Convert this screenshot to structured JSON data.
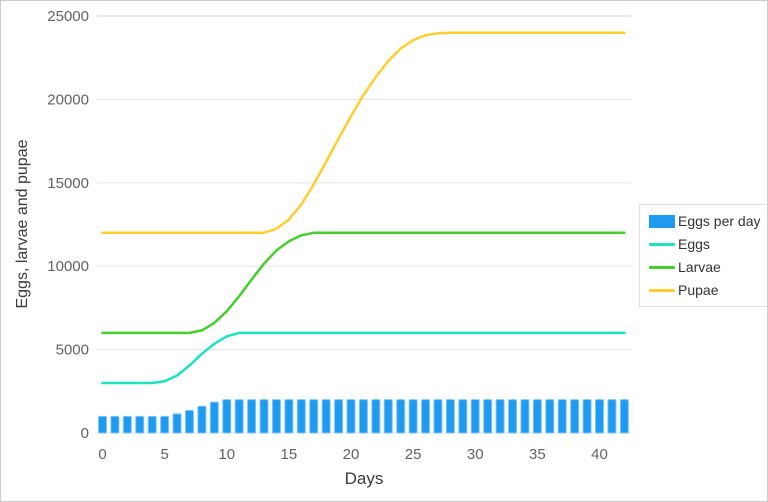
{
  "chart_data": {
    "type": "bar",
    "title": "",
    "xlabel": "Days",
    "ylabel": "Eggs, larvae and pupae",
    "ylim": [
      0,
      25000
    ],
    "yticks": [
      0,
      5000,
      10000,
      15000,
      20000,
      25000
    ],
    "xticks": [
      0,
      5,
      10,
      15,
      20,
      25,
      30,
      35,
      40
    ],
    "grid": "horizontal",
    "legend_position": "right",
    "x": [
      0,
      1,
      2,
      3,
      4,
      5,
      6,
      7,
      8,
      9,
      10,
      11,
      12,
      13,
      14,
      15,
      16,
      17,
      18,
      19,
      20,
      21,
      22,
      23,
      24,
      25,
      26,
      27,
      28,
      29,
      30,
      31,
      32,
      33,
      34,
      35,
      36,
      37,
      38,
      39,
      40,
      41,
      42
    ],
    "bar_series": {
      "name": "Eggs per day",
      "color": "#1E9BF0",
      "edge_color": "#7FC6F6",
      "values": [
        1000,
        1000,
        1000,
        1000,
        1000,
        1000,
        1150,
        1350,
        1600,
        1850,
        2000,
        2000,
        2000,
        2000,
        2000,
        2000,
        2000,
        2000,
        2000,
        2000,
        2000,
        2000,
        2000,
        2000,
        2000,
        2000,
        2000,
        2000,
        2000,
        2000,
        2000,
        2000,
        2000,
        2000,
        2000,
        2000,
        2000,
        2000,
        2000,
        2000,
        2000,
        2000,
        2000
      ]
    },
    "line_series": [
      {
        "name": "Eggs",
        "color": "#1BE4BD",
        "values": [
          3000,
          3000,
          3000,
          3000,
          3000,
          3100,
          3450,
          4050,
          4750,
          5350,
          5800,
          6000,
          6000,
          6000,
          6000,
          6000,
          6000,
          6000,
          6000,
          6000,
          6000,
          6000,
          6000,
          6000,
          6000,
          6000,
          6000,
          6000,
          6000,
          6000,
          6000,
          6000,
          6000,
          6000,
          6000,
          6000,
          6000,
          6000,
          6000,
          6000,
          6000,
          6000,
          6000
        ]
      },
      {
        "name": "Larvae",
        "color": "#44CF2C",
        "values": [
          6000,
          6000,
          6000,
          6000,
          6000,
          6000,
          6000,
          6000,
          6150,
          6600,
          7300,
          8200,
          9200,
          10150,
          10950,
          11500,
          11850,
          12000,
          12000,
          12000,
          12000,
          12000,
          12000,
          12000,
          12000,
          12000,
          12000,
          12000,
          12000,
          12000,
          12000,
          12000,
          12000,
          12000,
          12000,
          12000,
          12000,
          12000,
          12000,
          12000,
          12000,
          12000,
          12000
        ]
      },
      {
        "name": "Pupae",
        "color": "#FFCE2E",
        "values": [
          12000,
          12000,
          12000,
          12000,
          12000,
          12000,
          12000,
          12000,
          12000,
          12000,
          12000,
          12000,
          12000,
          12000,
          12250,
          12800,
          13700,
          14900,
          16250,
          17650,
          19000,
          20250,
          21350,
          22300,
          23050,
          23550,
          23850,
          23960,
          24000,
          24000,
          24000,
          24000,
          24000,
          24000,
          24000,
          24000,
          24000,
          24000,
          24000,
          24000,
          24000,
          24000,
          24000
        ]
      }
    ],
    "colors": {
      "gridline": "#E9E9E9",
      "tick_text": "#5F6368",
      "axis_label_text": "#3C3C3C",
      "legend_border": "#DDDDDD",
      "background": "#FFFFFF"
    }
  }
}
